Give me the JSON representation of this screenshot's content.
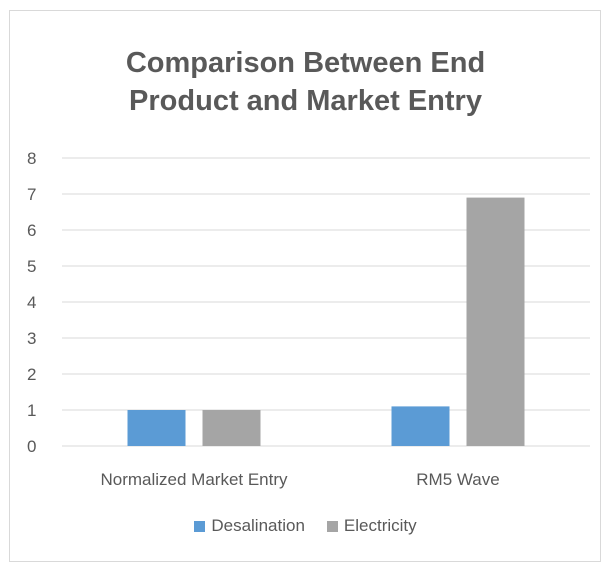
{
  "chart_data": {
    "type": "bar",
    "title_lines": [
      "Comparison Between End",
      "Product and Market Entry"
    ],
    "categories": [
      "Normalized Market Entry",
      "RM5 Wave"
    ],
    "series": [
      {
        "name": "Desalination",
        "color": "#5b9bd5",
        "values": [
          1,
          1.1
        ]
      },
      {
        "name": "Electricity",
        "color": "#a5a5a5",
        "values": [
          1,
          6.9
        ]
      }
    ],
    "ylim": [
      0,
      8
    ],
    "yticks": [
      "0",
      "1",
      "2",
      "3",
      "4",
      "5",
      "6",
      "7",
      "8"
    ],
    "grid": true,
    "legend_position": "bottom"
  },
  "colors": {
    "grid": "#d9d9d9",
    "text": "#595959"
  }
}
